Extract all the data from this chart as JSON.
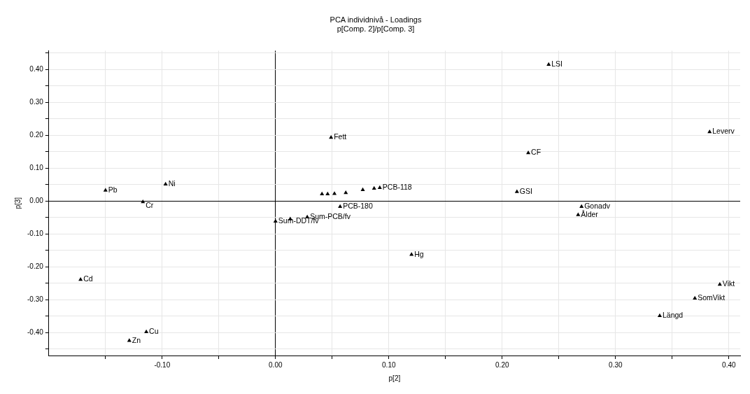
{
  "chart_data": {
    "type": "scatter",
    "title": "PCA individnivå - Loadings",
    "subtitle": "p[Comp. 2]/p[Comp. 3]",
    "xlabel": "p[2]",
    "ylabel": "p[3]",
    "x": [
      -0.15,
      -0.097,
      -0.117,
      -0.172,
      -0.114,
      -0.129,
      0.0,
      0.013,
      0.028,
      0.057,
      0.041,
      0.046,
      0.052,
      0.062,
      0.077,
      0.087,
      0.092,
      0.049,
      0.12,
      0.213,
      0.223,
      0.241,
      0.27,
      0.267,
      0.383,
      0.392,
      0.37,
      0.339
    ],
    "values": [
      0.032,
      0.051,
      -0.003,
      -0.239,
      -0.398,
      -0.425,
      -0.062,
      -0.055,
      -0.049,
      -0.017,
      0.021,
      0.021,
      0.022,
      0.025,
      0.034,
      0.038,
      0.04,
      0.193,
      -0.163,
      0.028,
      0.146,
      0.415,
      -0.017,
      -0.042,
      0.21,
      -0.254,
      -0.296,
      -0.349
    ],
    "value_labels": [
      "Pb",
      "Ni",
      "Cr",
      "Cd",
      "Cu",
      "Zn",
      "Sum-DDT/fv",
      null,
      "Sum-PCB/fv",
      "PCB-180",
      null,
      null,
      null,
      null,
      null,
      null,
      "PCB-118",
      "Fett",
      "Hg",
      "GSI",
      "CF",
      "LSI",
      "Gonadv",
      "Ålder",
      "Leverv",
      "Vikt",
      "SomVikt",
      "Längd"
    ],
    "color": "#000000",
    "marker": "triangle",
    "grid": true,
    "legend": false,
    "xlim": [
      -0.2,
      0.41
    ],
    "xticks": [
      {
        "value": -0.15,
        "label": null
      },
      {
        "value": -0.1,
        "label": "-0.10"
      },
      {
        "value": -0.05,
        "label": null
      },
      {
        "value": 0,
        "label": "0.00"
      },
      {
        "value": 0.05,
        "label": null
      },
      {
        "value": 0.1,
        "label": "0.10"
      },
      {
        "value": 0.15,
        "label": null
      },
      {
        "value": 0.2,
        "label": "0.20"
      },
      {
        "value": 0.25,
        "label": null
      },
      {
        "value": 0.3,
        "label": "0.30"
      },
      {
        "value": 0.35,
        "label": null
      },
      {
        "value": 0.4,
        "label": "0.40"
      }
    ],
    "ylim": [
      -0.47,
      0.457
    ],
    "yticks": [
      {
        "value": -0.45,
        "label": null
      },
      {
        "value": -0.4,
        "label": "-0.40"
      },
      {
        "value": -0.35,
        "label": null
      },
      {
        "value": -0.3,
        "label": "-0.30"
      },
      {
        "value": -0.25,
        "label": null
      },
      {
        "value": -0.2,
        "label": "-0.20"
      },
      {
        "value": -0.15,
        "label": null
      },
      {
        "value": -0.1,
        "label": "-0.10"
      },
      {
        "value": -0.05,
        "label": null
      },
      {
        "value": 0,
        "label": "0.00"
      },
      {
        "value": 0.05,
        "label": null
      },
      {
        "value": 0.1,
        "label": "0.10"
      },
      {
        "value": 0.15,
        "label": null
      },
      {
        "value": 0.2,
        "label": "0.20"
      },
      {
        "value": 0.25,
        "label": null
      },
      {
        "value": 0.3,
        "label": "0.30"
      },
      {
        "value": 0.35,
        "label": null
      },
      {
        "value": 0.4,
        "label": "0.40"
      },
      {
        "value": 0.45,
        "label": null
      }
    ]
  }
}
